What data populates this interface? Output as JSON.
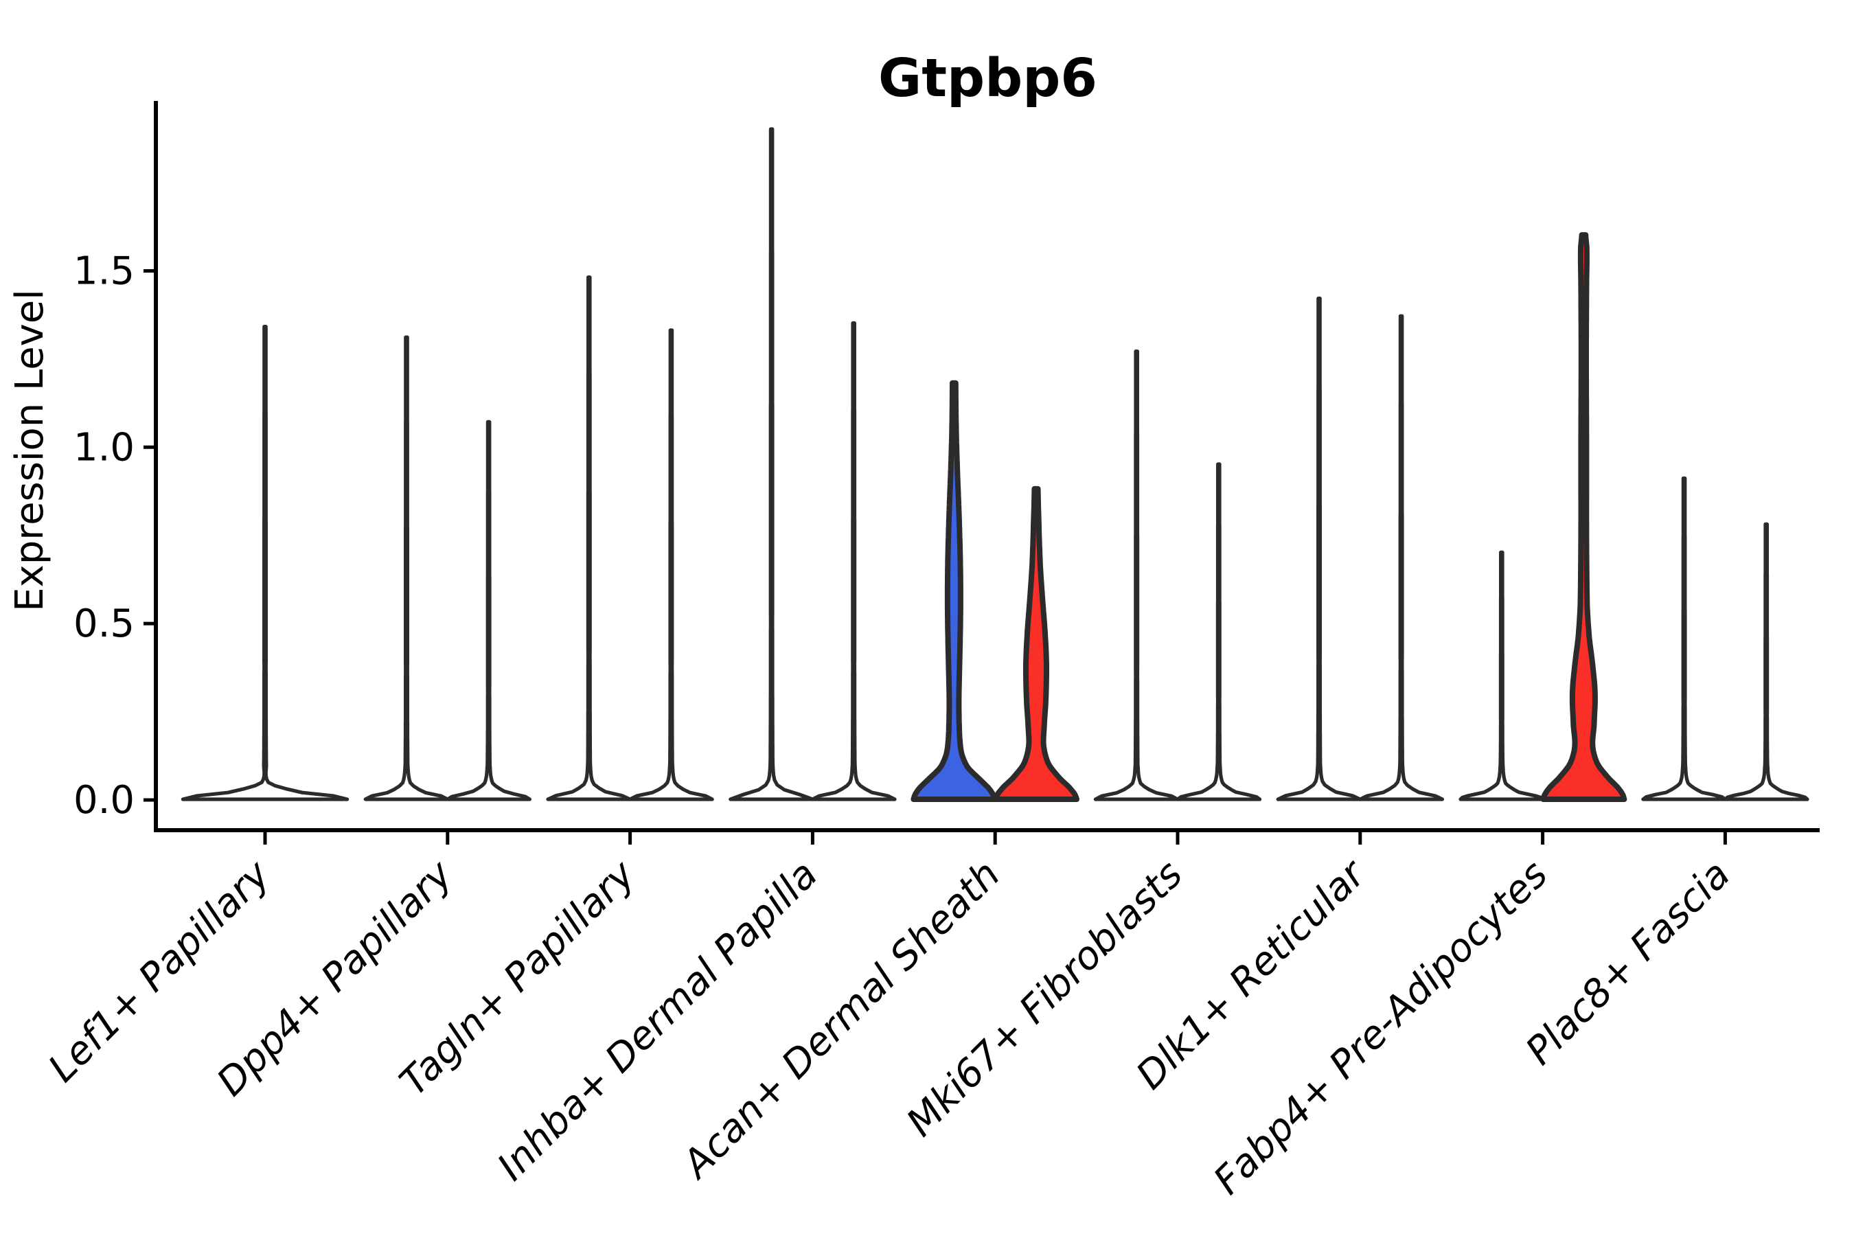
{
  "chart_data": {
    "type": "violin",
    "title": "Gtpbp6",
    "ylabel": "Expression Level",
    "xlabel": "",
    "yticks": [
      0.0,
      0.5,
      1.0,
      1.5
    ],
    "ytick_labels": [
      "0.0",
      "0.5",
      "1.0",
      "1.5"
    ],
    "ylim": [
      -0.09,
      1.98
    ],
    "grid": false,
    "legend": "none",
    "categories": [
      "Lef1+ Papillary",
      "Dpp4+ Papillary",
      "Tagln+ Papillary",
      "Inhba+ Dermal Papilla",
      "Acan+ Dermal Sheath",
      "Mki67+ Fibroblasts",
      "Dlk1+ Reticular",
      "Fabp4+ Pre-Adipocytes",
      "Plac8+ Fascia"
    ],
    "violins": [
      {
        "category": "Lef1+ Papillary",
        "slot": "center",
        "max": 1.34,
        "style": "line"
      },
      {
        "category": "Dpp4+ Papillary",
        "slot": "left",
        "max": 1.31,
        "style": "line"
      },
      {
        "category": "Dpp4+ Papillary",
        "slot": "right",
        "max": 1.07,
        "style": "line"
      },
      {
        "category": "Tagln+ Papillary",
        "slot": "left",
        "max": 1.48,
        "style": "line"
      },
      {
        "category": "Tagln+ Papillary",
        "slot": "right",
        "max": 1.33,
        "style": "line"
      },
      {
        "category": "Inhba+ Dermal Papilla",
        "slot": "left",
        "max": 1.9,
        "style": "line"
      },
      {
        "category": "Inhba+ Dermal Papilla",
        "slot": "right",
        "max": 1.35,
        "style": "line"
      },
      {
        "category": "Acan+ Dermal Sheath",
        "slot": "left",
        "max": 1.18,
        "style": "filled",
        "fill": "blue",
        "profile": [
          [
            0,
            59
          ],
          [
            0.025,
            53
          ],
          [
            0.055,
            38
          ],
          [
            0.09,
            20
          ],
          [
            0.13,
            11
          ],
          [
            0.18,
            8
          ],
          [
            0.28,
            7
          ],
          [
            0.42,
            8.5
          ],
          [
            0.55,
            9.5
          ],
          [
            0.68,
            9
          ],
          [
            0.82,
            7
          ],
          [
            0.95,
            4.5
          ],
          [
            1.06,
            3
          ],
          [
            1.18,
            2.4
          ]
        ]
      },
      {
        "category": "Acan+ Dermal Sheath",
        "slot": "right",
        "max": 0.88,
        "style": "filled",
        "fill": "red",
        "profile": [
          [
            0,
            59
          ],
          [
            0.025,
            52
          ],
          [
            0.06,
            34
          ],
          [
            0.1,
            18
          ],
          [
            0.15,
            11
          ],
          [
            0.2,
            11.5
          ],
          [
            0.28,
            14
          ],
          [
            0.38,
            15
          ],
          [
            0.47,
            13
          ],
          [
            0.56,
            9.5
          ],
          [
            0.66,
            6
          ],
          [
            0.77,
            4
          ],
          [
            0.88,
            2.6
          ]
        ]
      },
      {
        "category": "Mki67+ Fibroblasts",
        "slot": "left",
        "max": 1.27,
        "style": "line"
      },
      {
        "category": "Mki67+ Fibroblasts",
        "slot": "right",
        "max": 0.95,
        "style": "line"
      },
      {
        "category": "Dlk1+ Reticular",
        "slot": "left",
        "max": 1.42,
        "style": "line"
      },
      {
        "category": "Dlk1+ Reticular",
        "slot": "right",
        "max": 1.37,
        "style": "line"
      },
      {
        "category": "Fabp4+ Pre-Adipocytes",
        "slot": "left",
        "max": 0.7,
        "style": "line"
      },
      {
        "category": "Fabp4+ Pre-Adipocytes",
        "slot": "right",
        "max": 1.6,
        "style": "filled",
        "fill": "red",
        "profile": [
          [
            0,
            59
          ],
          [
            0.025,
            53
          ],
          [
            0.06,
            36
          ],
          [
            0.1,
            20
          ],
          [
            0.15,
            13
          ],
          [
            0.21,
            15
          ],
          [
            0.3,
            16.5
          ],
          [
            0.38,
            13
          ],
          [
            0.46,
            8
          ],
          [
            0.55,
            5
          ],
          [
            0.75,
            4
          ],
          [
            1.0,
            4
          ],
          [
            1.25,
            3.6
          ],
          [
            1.45,
            4
          ],
          [
            1.56,
            4.5
          ],
          [
            1.6,
            2.8
          ]
        ]
      },
      {
        "category": "Plac8+ Fascia",
        "slot": "left",
        "max": 0.91,
        "style": "line"
      },
      {
        "category": "Plac8+ Fascia",
        "slot": "right",
        "max": 0.78,
        "style": "line"
      }
    ],
    "colors": {
      "blue": "#3c63e2",
      "red": "#f92f28",
      "outline": "#2b2b2b",
      "axis": "#000000"
    }
  }
}
